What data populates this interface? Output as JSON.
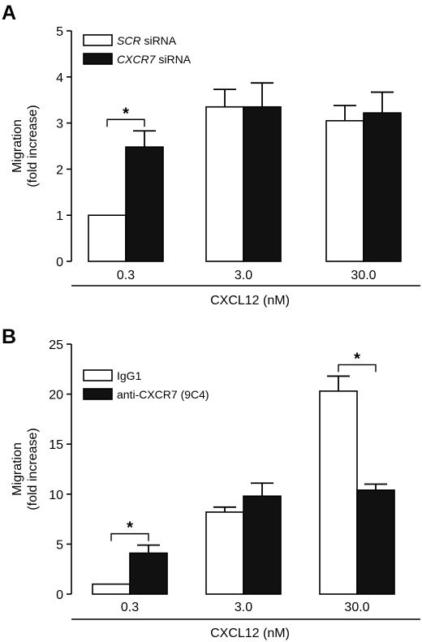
{
  "chart_data": [
    {
      "panel_label": "A",
      "type": "bar",
      "categories": [
        "0.3",
        "3.0",
        "30.0"
      ],
      "xlabel": "CXCL12 (nM)",
      "ylabel_line1": "Migration",
      "ylabel_line2": "(fold  increase)",
      "ylim": [
        0,
        5
      ],
      "yticks": [
        "0",
        "1",
        "2",
        "3",
        "4",
        "5"
      ],
      "legend_position": "top-left",
      "series": [
        {
          "name": "SCR",
          "name_suffix": " siRNA",
          "fill": "#ffffff",
          "values": [
            1.0,
            3.35,
            3.05
          ],
          "errors": [
            0,
            0.38,
            0.33
          ]
        },
        {
          "name": "CXCR7",
          "name_suffix": " siRNA",
          "fill": "#111111",
          "values": [
            2.48,
            3.35,
            3.22
          ],
          "errors": [
            0.35,
            0.52,
            0.45
          ]
        }
      ],
      "significance": [
        {
          "category_index": 0,
          "label": "*"
        }
      ]
    },
    {
      "panel_label": "B",
      "type": "bar",
      "categories": [
        "0.3",
        "3.0",
        "30.0"
      ],
      "xlabel": "CXCL12 (nM)",
      "ylabel_line1": "Migration",
      "ylabel_line2": "(fold increase)",
      "ylim": [
        0,
        25
      ],
      "yticks": [
        "0",
        "5",
        "10",
        "15",
        "20",
        "25"
      ],
      "legend_position": "top-left",
      "series": [
        {
          "name": "IgG1",
          "name_suffix": "",
          "fill": "#ffffff",
          "values": [
            1.0,
            8.2,
            20.3
          ],
          "errors": [
            0,
            0.5,
            1.5
          ]
        },
        {
          "name": "anti-CXCR7 (9C4)",
          "name_suffix": "",
          "fill": "#111111",
          "values": [
            4.1,
            9.8,
            10.4
          ],
          "errors": [
            0.8,
            1.3,
            0.6
          ]
        }
      ],
      "significance": [
        {
          "category_index": 0,
          "label": "*"
        },
        {
          "category_index": 2,
          "label": "*"
        }
      ]
    }
  ]
}
